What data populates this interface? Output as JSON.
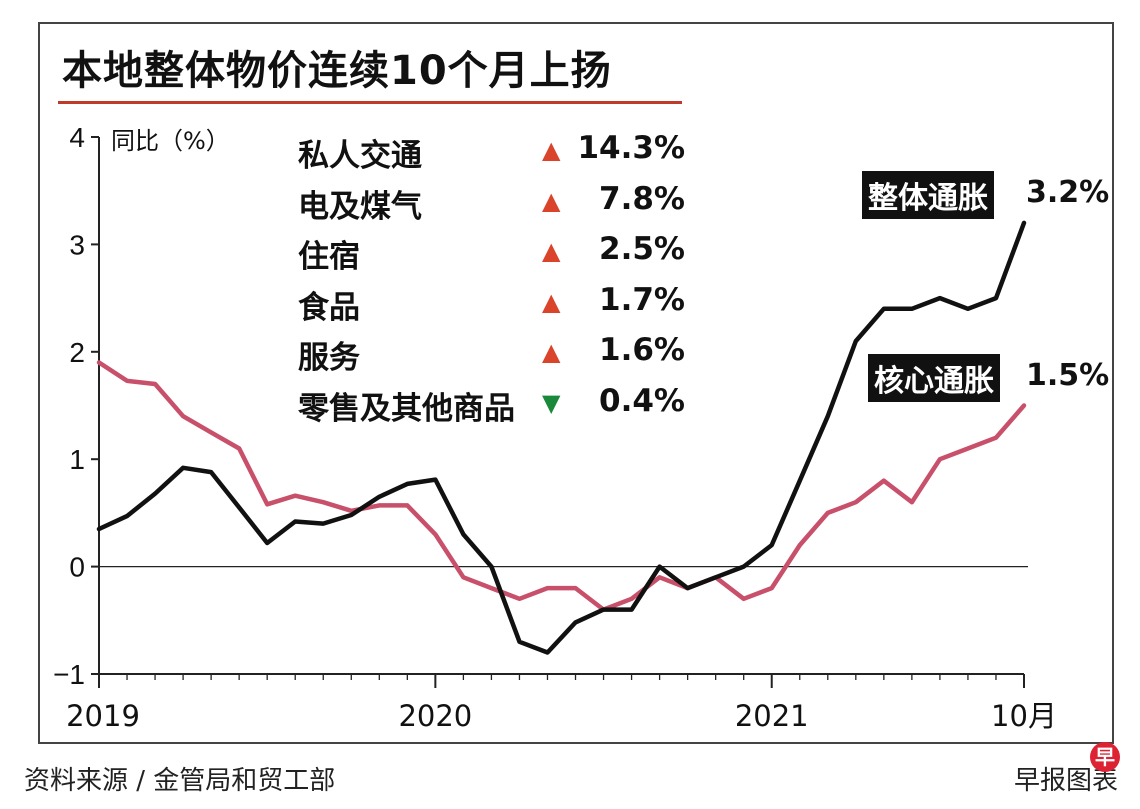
{
  "title": "本地整体物价连续10个月上扬",
  "source": "资料来源 / 金管局和贸工部",
  "publisher": "早报图表",
  "logo_char": "早",
  "components": [
    {
      "label": "私人交通",
      "direction": "up",
      "value": "14.3%"
    },
    {
      "label": "电及煤气",
      "direction": "up",
      "value": "7.8%"
    },
    {
      "label": "住宿",
      "direction": "up",
      "value": "2.5%"
    },
    {
      "label": "食品",
      "direction": "up",
      "value": "1.7%"
    },
    {
      "label": "服务",
      "direction": "up",
      "value": "1.6%"
    },
    {
      "label": "零售及其他商品",
      "direction": "down",
      "value": "0.4%"
    }
  ],
  "arrows": {
    "up": "▲",
    "down": "▼"
  },
  "colors": {
    "headline": "#111111",
    "core": "#c8506a",
    "accent": "#c0392b",
    "up": "#d9442a",
    "down": "#1a8a3a"
  },
  "chart_data": {
    "type": "line",
    "ylabel": "同比（%）",
    "ylim": [
      -1,
      4
    ],
    "yticks": [
      "4",
      "3",
      "2",
      "1",
      "0",
      "−1"
    ],
    "x_tick_labels": [
      "2019",
      "2020",
      "2021",
      "10月"
    ],
    "x_tick_index": [
      0,
      12,
      24,
      33
    ],
    "series": [
      {
        "name": "整体通胀",
        "end_label": "3.2%",
        "values": [
          0.35,
          0.47,
          0.68,
          0.92,
          0.88,
          0.55,
          0.22,
          0.42,
          0.4,
          0.48,
          0.65,
          0.77,
          0.81,
          0.3,
          0.0,
          -0.7,
          -0.8,
          -0.52,
          -0.4,
          -0.4,
          0.0,
          -0.2,
          -0.1,
          0.0,
          0.2,
          0.8,
          1.4,
          2.1,
          2.4,
          2.4,
          2.5,
          2.4,
          2.5,
          3.2
        ]
      },
      {
        "name": "核心通胀",
        "end_label": "1.5%",
        "values": [
          1.9,
          1.73,
          1.7,
          1.4,
          1.25,
          1.1,
          0.58,
          0.66,
          0.6,
          0.52,
          0.57,
          0.57,
          0.3,
          -0.1,
          -0.2,
          -0.3,
          -0.2,
          -0.2,
          -0.4,
          -0.3,
          -0.1,
          -0.2,
          -0.1,
          -0.3,
          -0.2,
          0.2,
          0.5,
          0.6,
          0.8,
          0.6,
          1.0,
          1.1,
          1.2,
          1.5
        ]
      }
    ]
  }
}
